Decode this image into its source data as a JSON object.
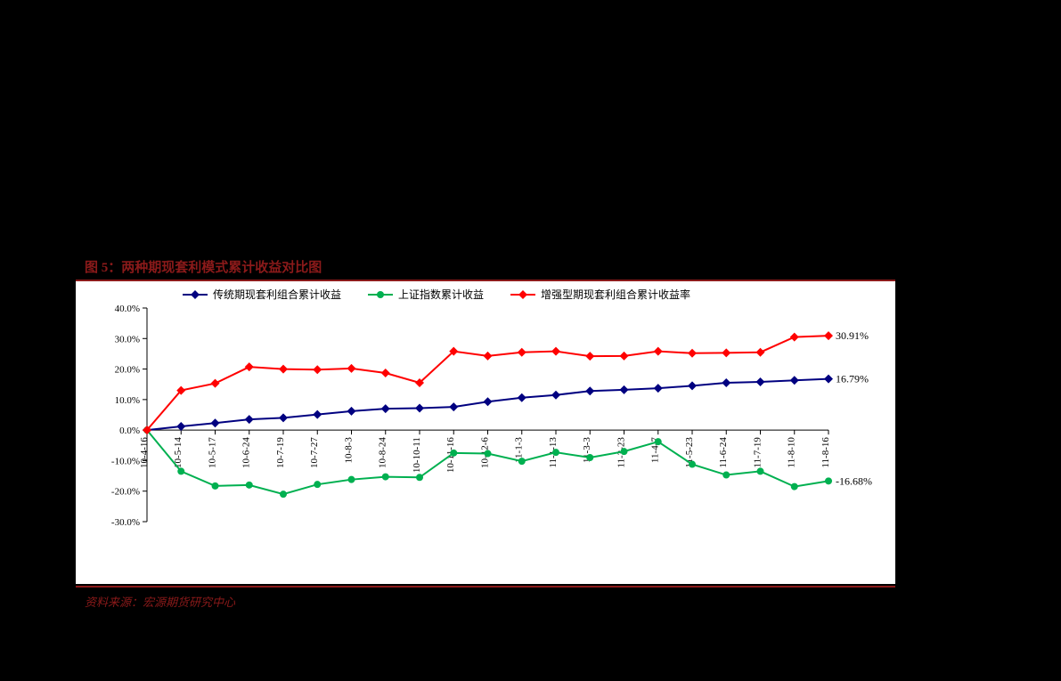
{
  "title": "图 5：两种期现套利模式累计收益对比图",
  "source": "资料来源：宏源期货研究中心",
  "chart": {
    "type": "line",
    "background_color": "#ffffff",
    "plot_border_color": "#000000",
    "axis_color": "#000000",
    "tick_font_size": 11,
    "legend_font_size": 12,
    "ylim": [
      -30,
      40
    ],
    "ytick_step": 10,
    "yticks": [
      -30,
      -20,
      -10,
      0,
      10,
      20,
      30,
      40
    ],
    "ytick_labels": [
      "-30.0%",
      "-20.0%",
      "-10.0%",
      "0.0%",
      "10.0%",
      "20.0%",
      "30.0%",
      "40.0%"
    ],
    "categories": [
      "10-4-16",
      "10-5-14",
      "10-5-17",
      "10-6-24",
      "10-7-19",
      "10-7-27",
      "10-8-3",
      "10-8-24",
      "10-10-11",
      "10-11-16",
      "10-12-6",
      "11-1-3",
      "11-1-13",
      "11-3-3",
      "11-3-23",
      "11-4-7",
      "11-5-23",
      "11-6-24",
      "11-7-19",
      "11-8-10",
      "11-8-16"
    ],
    "series": [
      {
        "name": "传统期现套利组合累计收益",
        "color": "#000080",
        "marker": "diamond",
        "marker_size": 5,
        "line_width": 2,
        "values": [
          0,
          1.2,
          2.3,
          3.5,
          4.0,
          5.1,
          6.2,
          7.0,
          7.2,
          7.6,
          9.3,
          10.6,
          11.5,
          12.8,
          13.2,
          13.7,
          14.5,
          15.5,
          15.8,
          16.3,
          16.79
        ],
        "end_label": "16.79%"
      },
      {
        "name": "上证指数累计收益",
        "color": "#00b050",
        "marker": "circle",
        "marker_size": 4,
        "line_width": 2,
        "values": [
          0,
          -13.5,
          -18.3,
          -18.0,
          -21.0,
          -17.8,
          -16.2,
          -15.3,
          -15.5,
          -7.5,
          -7.7,
          -10.2,
          -7.3,
          -9.0,
          -7.0,
          -3.8,
          -11.2,
          -14.7,
          -13.5,
          -18.5,
          -16.68
        ],
        "end_label": "-16.68%"
      },
      {
        "name": "增强型期现套利组合累计收益率",
        "color": "#ff0000",
        "marker": "diamond",
        "marker_size": 5,
        "line_width": 2,
        "values": [
          0,
          13.0,
          15.3,
          20.7,
          20.0,
          19.8,
          20.2,
          18.7,
          15.5,
          25.8,
          24.3,
          25.5,
          25.8,
          24.2,
          24.3,
          25.8,
          25.2,
          25.3,
          25.5,
          30.5,
          30.91
        ],
        "end_label": "30.91%"
      }
    ],
    "legend_position": "top"
  }
}
